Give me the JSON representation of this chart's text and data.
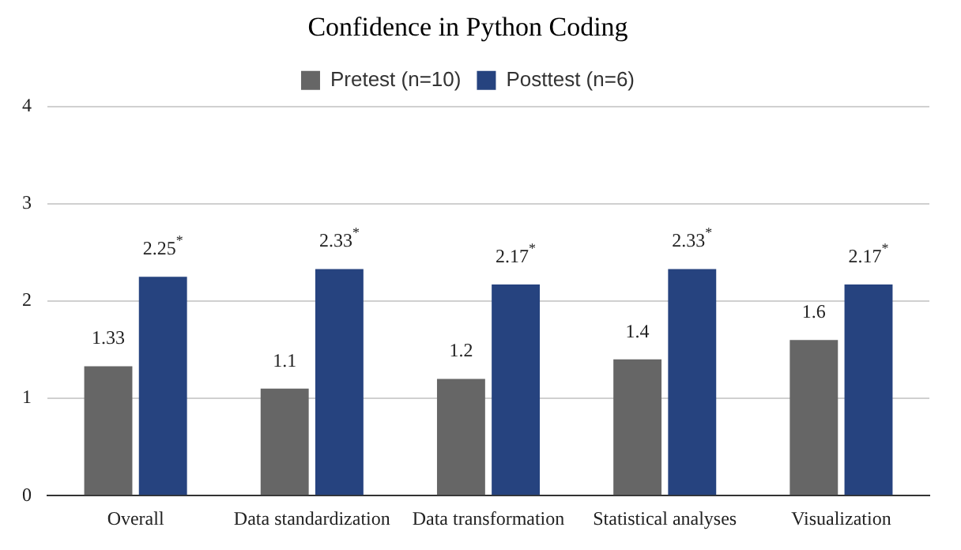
{
  "chart_data": {
    "type": "bar",
    "title": "Confidence in Python Coding",
    "categories": [
      "Overall",
      "Data standardization",
      "Data transformation",
      "Statistical analyses",
      "Visualization"
    ],
    "series": [
      {
        "name": "Pretest (n=10)",
        "color": "#666666",
        "values": [
          1.33,
          1.1,
          1.2,
          1.4,
          1.6
        ],
        "value_labels": [
          "1.33",
          "1.1",
          "1.2",
          "1.4",
          "1.6"
        ]
      },
      {
        "name": "Posttest (n=6)",
        "color": "#26437f",
        "values": [
          2.25,
          2.33,
          2.17,
          2.33,
          2.17
        ],
        "value_labels": [
          "2.25$^{*}$",
          "2.33$^{*}$",
          "2.17$^{*}$",
          "2.33$^{*}$",
          "2.17$^{*}$"
        ]
      }
    ],
    "ylim": [
      0,
      4
    ],
    "yticks": [
      0,
      1,
      2,
      3,
      4
    ],
    "grid": "y",
    "legend": "top"
  }
}
